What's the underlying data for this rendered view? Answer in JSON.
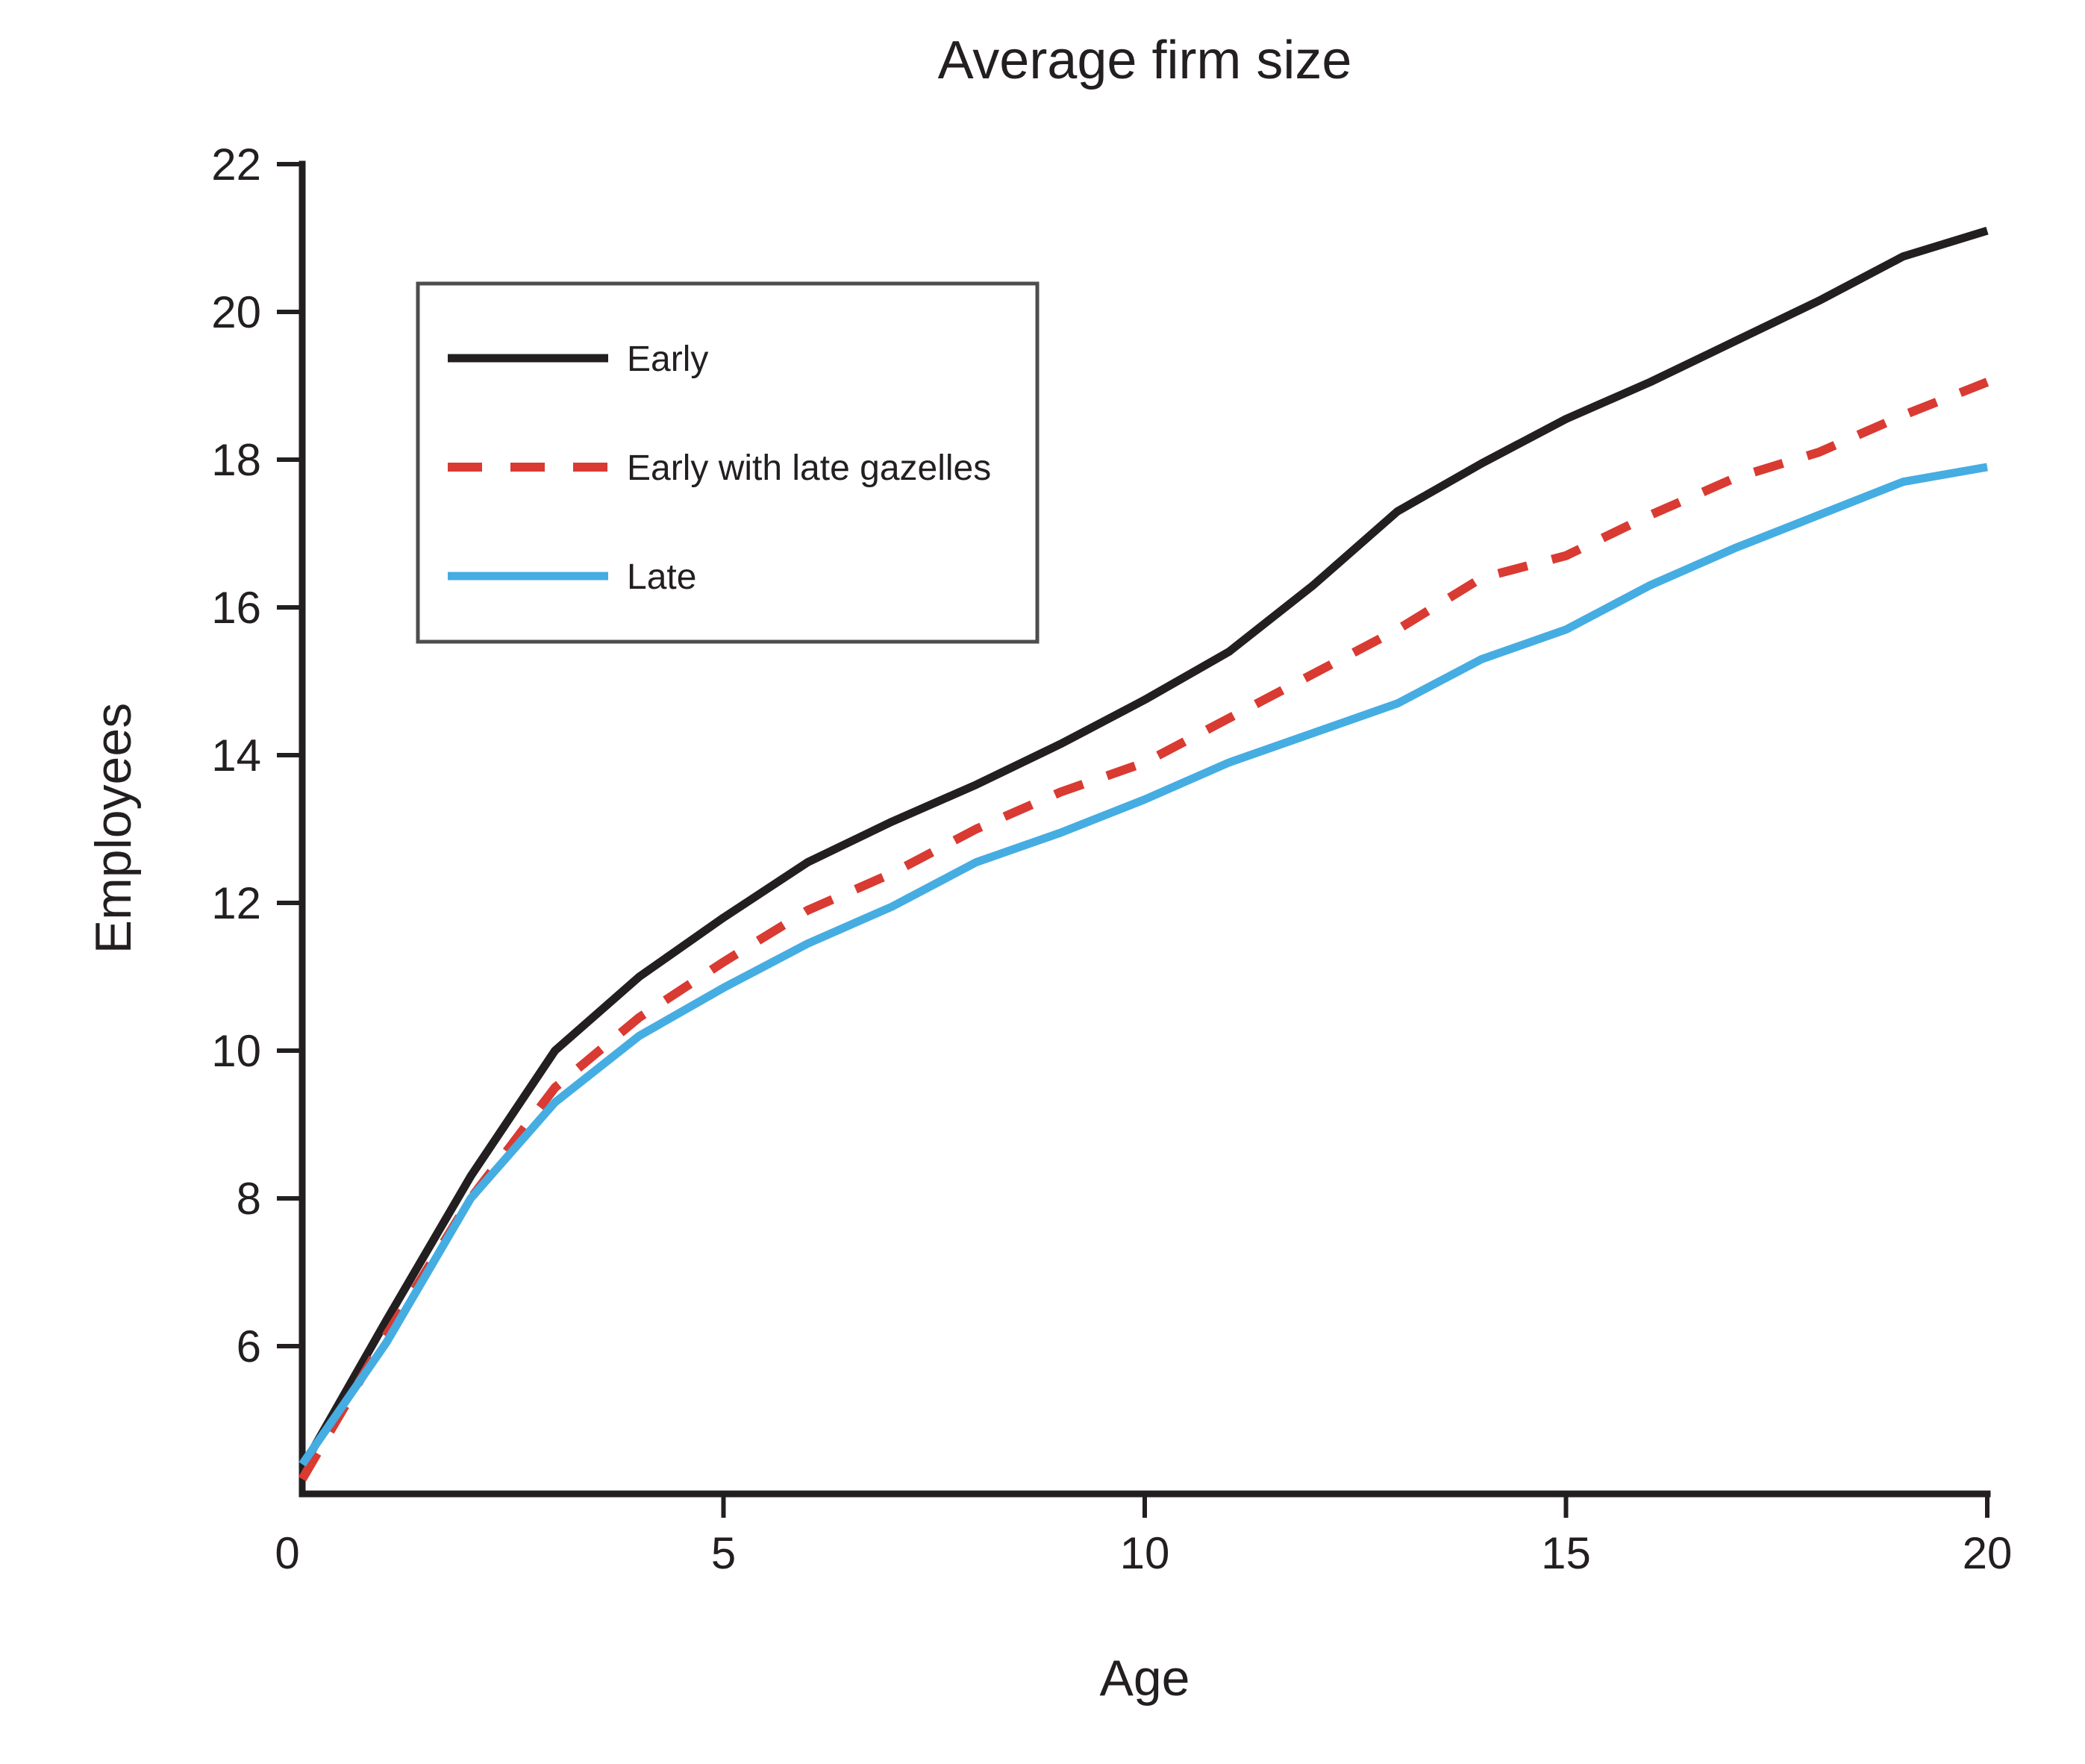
{
  "chart_data": {
    "type": "line",
    "title": "Average firm size",
    "xlabel": "Age",
    "ylabel": "Employees",
    "xlim": [
      0,
      20
    ],
    "ylim": [
      4,
      22
    ],
    "xticks": [
      0,
      5,
      10,
      15,
      20
    ],
    "yticks": [
      6,
      8,
      10,
      12,
      14,
      16,
      18,
      20,
      22
    ],
    "grid": false,
    "legend_position": "upper left",
    "axis_color": "#231f20",
    "legend_border_color": "#4d4d4d",
    "x": [
      0,
      1,
      2,
      3,
      4,
      5,
      6,
      7,
      8,
      9,
      10,
      11,
      12,
      13,
      14,
      15,
      16,
      17,
      18,
      19,
      20
    ],
    "series": [
      {
        "name": "Early",
        "color": "#231f20",
        "line_style": "solid",
        "values": [
          4.35,
          6.35,
          8.3,
          10.0,
          11.0,
          11.8,
          12.55,
          13.1,
          13.6,
          14.15,
          14.75,
          15.4,
          16.3,
          17.3,
          17.95,
          18.55,
          19.05,
          19.6,
          20.15,
          20.75,
          21.1
        ]
      },
      {
        "name": "Early with late gazelles",
        "color": "#d93a32",
        "line_style": "dashed",
        "values": [
          4.2,
          6.15,
          8.0,
          9.5,
          10.45,
          11.2,
          11.9,
          12.4,
          13.0,
          13.5,
          13.9,
          14.5,
          15.1,
          15.7,
          16.4,
          16.7,
          17.25,
          17.75,
          18.1,
          18.6,
          19.05
        ]
      },
      {
        "name": "Late",
        "color": "#45ade2",
        "line_style": "solid",
        "values": [
          4.4,
          6.05,
          8.0,
          9.3,
          10.2,
          10.85,
          11.45,
          11.95,
          12.55,
          12.95,
          13.4,
          13.9,
          14.3,
          14.7,
          15.3,
          15.7,
          16.3,
          16.8,
          17.25,
          17.7,
          17.9
        ]
      }
    ]
  }
}
